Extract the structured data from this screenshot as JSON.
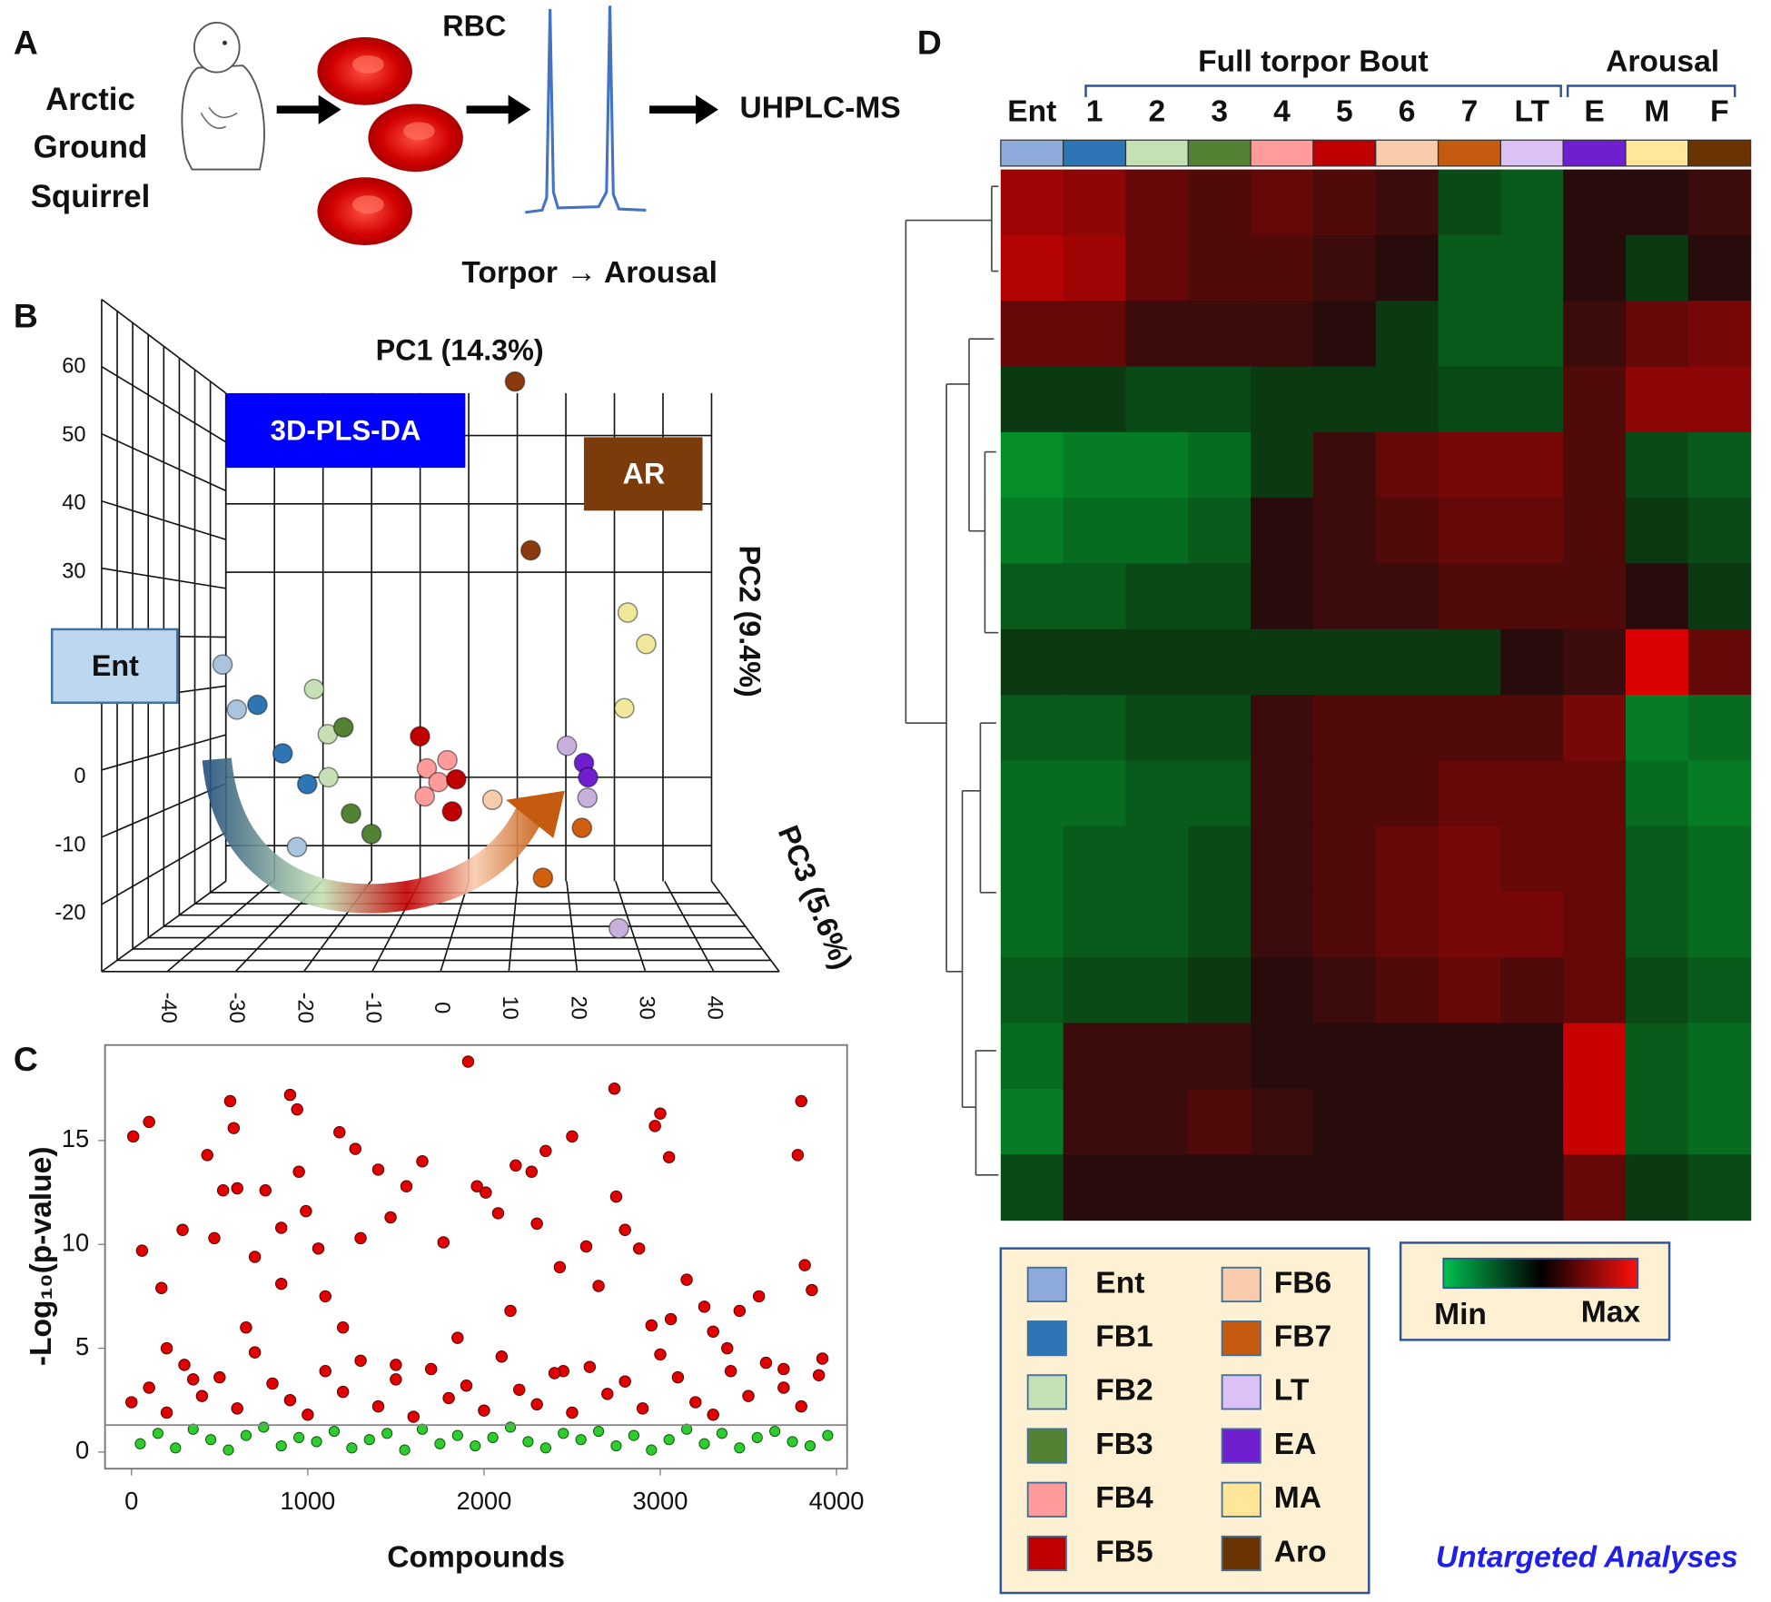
{
  "panel_labels": [
    "A",
    "B",
    "C",
    "D"
  ],
  "panel_a": {
    "species": [
      "Arctic",
      "Ground",
      "Squirrel"
    ],
    "sample": "RBC",
    "method": "UHPLC-MS",
    "caption": "Torpor → Arousal"
  },
  "chart_data": [
    {
      "type": "scatter3d",
      "axis_labels": [
        "PC1 (14.3%)",
        "PC2 (9.4%)",
        "PC3 (5.6%)"
      ],
      "annotations": [
        "3D-PLS-DA",
        "AR",
        "Ent"
      ],
      "xlim": [
        -50,
        50
      ],
      "xticks": [
        -40,
        -30,
        -20,
        -10,
        0,
        10,
        20,
        30,
        40
      ],
      "ylim": [
        -30,
        70
      ],
      "yticks": [
        -20,
        -10,
        0,
        30,
        40,
        50,
        60
      ],
      "series": [
        {
          "color": "#a9c4dc",
          "x": [
            -31.9,
            -29.8,
            -21
          ],
          "values": [
            16.5,
            9.9,
            -10.2
          ]
        },
        {
          "color": "#2e75b6",
          "x": [
            -26.8,
            -23.1,
            -19.5
          ],
          "values": [
            10.6,
            3.5,
            -1.0
          ]
        },
        {
          "color": "#c5e0b4",
          "x": [
            -18.5,
            -16.5,
            -16.4
          ],
          "values": [
            12.9,
            6.3,
            0
          ]
        },
        {
          "color": "#548235",
          "x": [
            -14.2,
            -13.1,
            -10.1
          ],
          "values": [
            7.3,
            -5.3,
            -8.3
          ]
        },
        {
          "color": "#ff9b9b",
          "x": [
            -2,
            -0.3,
            -2.3,
            1
          ],
          "values": [
            1.3,
            -0.7,
            -2.8,
            2.5
          ]
        },
        {
          "color": "#c00000",
          "x": [
            -3,
            2.3,
            1.7
          ],
          "values": [
            6,
            -0.3,
            -5
          ]
        },
        {
          "color": "#f8cbad",
          "x": [
            7.6
          ],
          "values": [
            -3.3
          ]
        },
        {
          "color": "#d0600f",
          "x": [
            20.7,
            15
          ],
          "values": [
            -7.4,
            -14.7
          ]
        },
        {
          "color": "#c8b0dc",
          "x": [
            18.5,
            21.5,
            26.1
          ],
          "values": [
            4.6,
            -3.0,
            -22.1
          ]
        },
        {
          "color": "#6f1fcf",
          "x": [
            21,
            21.6
          ],
          "values": [
            2.1,
            0
          ]
        },
        {
          "color": "#efe79a",
          "x": [
            27.4,
            30.1,
            26.9
          ],
          "values": [
            24.1,
            19.5,
            10.1
          ]
        },
        {
          "color": "#8b3a0f",
          "x": [
            10.9,
            13.2
          ],
          "values": [
            57.9,
            33.2
          ]
        }
      ]
    },
    {
      "type": "scatter",
      "xlabel": "Compounds",
      "ylabel": "-Log₁₀(p-value)",
      "xlim": [
        -150,
        4060
      ],
      "xticks": [
        0,
        1000,
        2000,
        3000,
        4000
      ],
      "ylim": [
        -0.8,
        19.6
      ],
      "yticks": [
        0,
        5,
        10,
        15
      ],
      "threshold": 1.3,
      "series": [
        {
          "color": "#e00000",
          "x": [
            10,
            60,
            100,
            170,
            290,
            430,
            470,
            520,
            560,
            580,
            600,
            700,
            760,
            850,
            900,
            940,
            950,
            990,
            1060,
            1180,
            1270,
            1300,
            1400,
            1470,
            1560,
            1650,
            1770,
            1910,
            1960,
            2010,
            2080,
            2180,
            2270,
            2300,
            2350,
            2430,
            2500,
            2580,
            2740,
            2750,
            2800,
            2880,
            2970,
            3000,
            3050,
            3060,
            3150,
            3250,
            3380,
            3450,
            3560,
            3780,
            3800,
            3820,
            3860,
            3920,
            200,
            350,
            650,
            1100,
            1500,
            1850,
            2150,
            2650,
            3300,
            3700,
            850,
            1200,
            2450,
            2950
          ],
          "values": [
            15.2,
            9.7,
            15.9,
            7.9,
            10.7,
            14.3,
            10.3,
            12.6,
            16.9,
            15.6,
            12.7,
            9.4,
            12.6,
            10.8,
            17.2,
            16.5,
            13.5,
            11.6,
            9.8,
            15.4,
            14.6,
            10.3,
            13.6,
            11.3,
            12.8,
            14.0,
            10.1,
            18.8,
            12.8,
            12.5,
            11.5,
            13.8,
            13.5,
            11.0,
            14.5,
            8.9,
            15.2,
            9.9,
            17.5,
            12.3,
            10.7,
            9.8,
            15.7,
            16.3,
            14.2,
            6.4,
            8.3,
            7.0,
            5.0,
            6.8,
            7.5,
            14.3,
            16.9,
            9.0,
            7.8,
            4.5,
            5.0,
            3.5,
            6.0,
            7.5,
            4.2,
            5.5,
            6.8,
            8.0,
            5.8,
            4.0,
            8.1,
            6.0,
            3.9,
            6.1
          ]
        },
        {
          "color": "#e00000",
          "x": [
            0,
            100,
            200,
            300,
            400,
            500,
            600,
            700,
            800,
            900,
            1000,
            1100,
            1200,
            1300,
            1400,
            1500,
            1600,
            1700,
            1800,
            1900,
            2000,
            2100,
            2200,
            2300,
            2400,
            2500,
            2600,
            2700,
            2800,
            2900,
            3000,
            3100,
            3200,
            3300,
            3400,
            3500,
            3600,
            3700,
            3800,
            3900
          ],
          "values": [
            2.4,
            3.1,
            1.9,
            4.2,
            2.7,
            3.6,
            2.1,
            4.8,
            3.3,
            2.5,
            1.8,
            3.9,
            2.9,
            4.4,
            2.2,
            3.5,
            1.7,
            4.0,
            2.6,
            3.2,
            2.0,
            4.6,
            3.0,
            2.3,
            3.8,
            1.9,
            4.1,
            2.8,
            3.4,
            2.1,
            4.7,
            3.6,
            2.4,
            1.8,
            3.9,
            2.7,
            4.3,
            3.1,
            2.2,
            3.7
          ]
        },
        {
          "color": "#2ecc2e",
          "x": [
            50,
            150,
            250,
            350,
            450,
            550,
            650,
            750,
            850,
            950,
            1050,
            1150,
            1250,
            1350,
            1450,
            1550,
            1650,
            1750,
            1850,
            1950,
            2050,
            2150,
            2250,
            2350,
            2450,
            2550,
            2650,
            2750,
            2850,
            2950,
            3050,
            3150,
            3250,
            3350,
            3450,
            3550,
            3650,
            3750,
            3850,
            3950
          ],
          "values": [
            0.4,
            0.9,
            0.2,
            1.1,
            0.6,
            0.1,
            0.8,
            1.2,
            0.3,
            0.7,
            0.5,
            1.0,
            0.2,
            0.6,
            0.9,
            0.1,
            1.1,
            0.4,
            0.8,
            0.3,
            0.7,
            1.2,
            0.5,
            0.2,
            0.9,
            0.6,
            1.0,
            0.3,
            0.8,
            0.1,
            0.6,
            1.1,
            0.4,
            0.9,
            0.2,
            0.7,
            1.0,
            0.5,
            0.3,
            0.8
          ]
        }
      ]
    },
    {
      "type": "heatmap",
      "categories": [
        "Ent",
        "1",
        "2",
        "3",
        "4",
        "5",
        "6",
        "7",
        "LT",
        "E",
        "M",
        "F"
      ],
      "column_groups": [
        "Full torpor Bout",
        "Arousal"
      ],
      "zlim": [
        -1,
        1
      ],
      "colorbar_labels": [
        "Min",
        "Max"
      ],
      "legend": [
        {
          "name": "Ent",
          "color": "#8eaadb"
        },
        {
          "name": "FB1",
          "color": "#2e75b6"
        },
        {
          "name": "FB2",
          "color": "#c5e0b4"
        },
        {
          "name": "FB3",
          "color": "#548235"
        },
        {
          "name": "FB4",
          "color": "#ff9b9b"
        },
        {
          "name": "FB5",
          "color": "#c00000"
        },
        {
          "name": "FB6",
          "color": "#f8cbad"
        },
        {
          "name": "FB7",
          "color": "#c55a11"
        },
        {
          "name": "LT",
          "color": "#dcc1f7"
        },
        {
          "name": "EA",
          "color": "#6f1fcf"
        },
        {
          "name": "MA",
          "color": "#ffe699"
        },
        {
          "name": "Aro",
          "color": "#6b3300"
        }
      ],
      "values": [
        [
          0.6,
          0.5,
          0.3,
          0.2,
          0.3,
          0.2,
          0.1,
          -0.2,
          -0.3,
          0.0,
          0.0,
          0.1
        ],
        [
          0.7,
          0.6,
          0.3,
          0.2,
          0.2,
          0.1,
          0.0,
          -0.3,
          -0.3,
          0.0,
          -0.1,
          0.0
        ],
        [
          0.3,
          0.3,
          0.1,
          0.1,
          0.1,
          0.0,
          -0.1,
          -0.3,
          -0.3,
          0.1,
          0.3,
          0.4
        ],
        [
          -0.1,
          -0.1,
          -0.2,
          -0.2,
          -0.1,
          -0.1,
          -0.1,
          -0.2,
          -0.2,
          0.2,
          0.5,
          0.5
        ],
        [
          -0.6,
          -0.5,
          -0.5,
          -0.4,
          -0.1,
          0.1,
          0.3,
          0.4,
          0.4,
          0.2,
          -0.2,
          -0.3
        ],
        [
          -0.5,
          -0.4,
          -0.4,
          -0.3,
          0.0,
          0.1,
          0.2,
          0.3,
          0.3,
          0.2,
          -0.1,
          -0.2
        ],
        [
          -0.3,
          -0.3,
          -0.2,
          -0.2,
          0.0,
          0.1,
          0.1,
          0.2,
          0.2,
          0.2,
          0.0,
          -0.1
        ],
        [
          -0.1,
          -0.1,
          -0.1,
          -0.1,
          -0.1,
          -0.1,
          -0.1,
          -0.1,
          0.0,
          0.1,
          0.9,
          0.3
        ],
        [
          -0.3,
          -0.3,
          -0.2,
          -0.2,
          0.1,
          0.2,
          0.2,
          0.2,
          0.2,
          0.4,
          -0.5,
          -0.4
        ],
        [
          -0.4,
          -0.4,
          -0.3,
          -0.3,
          0.1,
          0.2,
          0.2,
          0.3,
          0.3,
          0.3,
          -0.4,
          -0.5
        ],
        [
          -0.4,
          -0.3,
          -0.3,
          -0.2,
          0.1,
          0.2,
          0.3,
          0.4,
          0.3,
          0.3,
          -0.3,
          -0.4
        ],
        [
          -0.4,
          -0.3,
          -0.3,
          -0.2,
          0.1,
          0.2,
          0.3,
          0.4,
          0.4,
          0.3,
          -0.3,
          -0.4
        ],
        [
          -0.3,
          -0.2,
          -0.2,
          -0.1,
          0.0,
          0.1,
          0.2,
          0.3,
          0.2,
          0.3,
          -0.2,
          -0.3
        ],
        [
          -0.4,
          0.1,
          0.1,
          0.1,
          0.0,
          0.0,
          0.0,
          0.0,
          0.0,
          0.8,
          -0.3,
          -0.4
        ],
        [
          -0.5,
          0.1,
          0.1,
          0.2,
          0.1,
          0.0,
          0.0,
          0.0,
          0.0,
          0.8,
          -0.3,
          -0.4
        ],
        [
          -0.2,
          0.0,
          0.0,
          0.0,
          0.0,
          0.0,
          0.0,
          0.0,
          0.0,
          0.3,
          -0.1,
          -0.2
        ]
      ]
    }
  ],
  "footer": "Untargeted Analyses"
}
